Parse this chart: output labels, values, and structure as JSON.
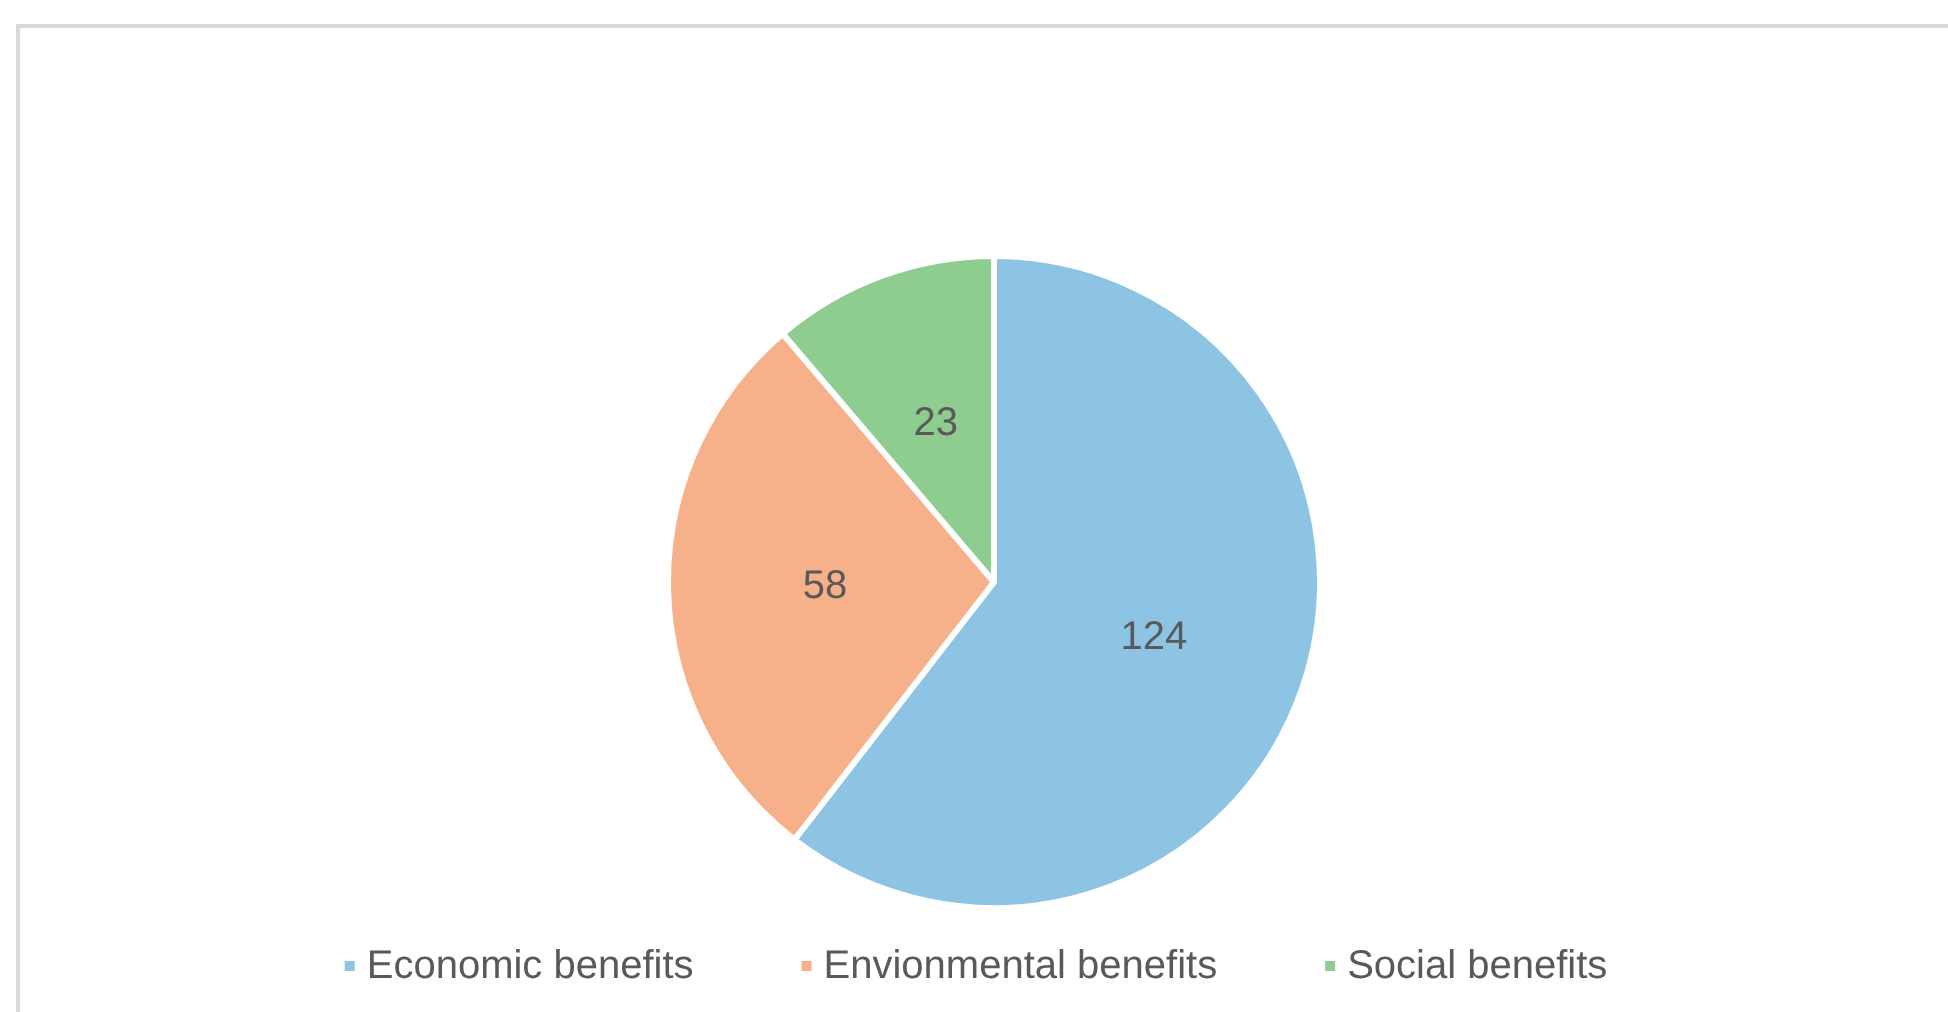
{
  "chart_data": {
    "type": "pie",
    "categories": [
      "Economic benefits",
      "Envionmental benefits",
      "Social benefits"
    ],
    "values": [
      124,
      58,
      23
    ],
    "colors": [
      "#8ec4e3",
      "#f6b08a",
      "#8fcc8f"
    ],
    "data_labels": true,
    "legend": "bottom"
  }
}
